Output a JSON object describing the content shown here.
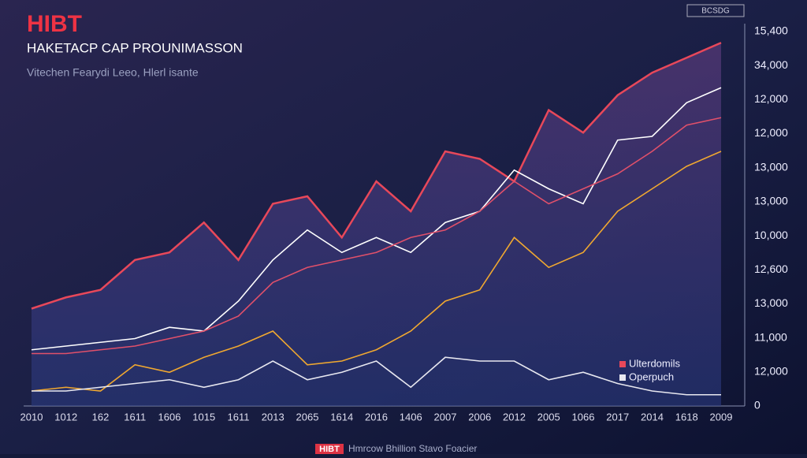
{
  "chart_data": {
    "type": "line",
    "title": "HIBT",
    "subtitle": "HAKETACP CAP PROUNIMASSON",
    "caption": "Vitechen Fearydi Leeo, Hlerl isante",
    "button": "BCSDG",
    "footer_badge": "HIBT",
    "footer": "Hmrcow Bhillion Stavo Foacier",
    "categories": [
      "2010",
      "1012",
      "162",
      "1611",
      "1606",
      "1015",
      "1611",
      "2013",
      "2065",
      "1614",
      "2016",
      "1406",
      "2007",
      "2006",
      "2012",
      "2005",
      "1066",
      "2017",
      "2014",
      "1618",
      "2009"
    ],
    "y_axis_labels": [
      "15,400",
      "34,000",
      "12,000",
      "12,000",
      "13,000",
      "13,000",
      "10,000",
      "12,600",
      "13,000",
      "11,000",
      "12,000",
      "0"
    ],
    "ylim": [
      0,
      100
    ],
    "series": [
      {
        "name": "Ulterdomils",
        "color": "#e8485a",
        "values": [
          26,
          29,
          31,
          39,
          41,
          49,
          39,
          54,
          56,
          45,
          60,
          52,
          68,
          66,
          60,
          79,
          73,
          83,
          89,
          93,
          97
        ]
      },
      {
        "color": "#ffffff",
        "values": [
          15,
          16,
          17,
          18,
          21,
          20,
          28,
          39,
          47,
          41,
          45,
          41,
          49,
          52,
          63,
          58,
          54,
          71,
          72,
          81,
          85
        ]
      },
      {
        "color": "#e0506a",
        "values": [
          14,
          14,
          15,
          16,
          18,
          20,
          24,
          33,
          37,
          39,
          41,
          45,
          47,
          52,
          60,
          54,
          58,
          62,
          68,
          75,
          77
        ]
      },
      {
        "color": "#f0a830",
        "values": [
          4,
          5,
          4,
          11,
          9,
          13,
          16,
          20,
          11,
          12,
          15,
          20,
          28,
          31,
          45,
          37,
          41,
          52,
          58,
          64,
          68
        ]
      },
      {
        "name": "Operpuch",
        "color": "#e8e8f0",
        "values": [
          4,
          4,
          5,
          6,
          7,
          5,
          7,
          12,
          7,
          9,
          12,
          5,
          13,
          12,
          12,
          7,
          9,
          6,
          4,
          3,
          3
        ]
      }
    ]
  }
}
